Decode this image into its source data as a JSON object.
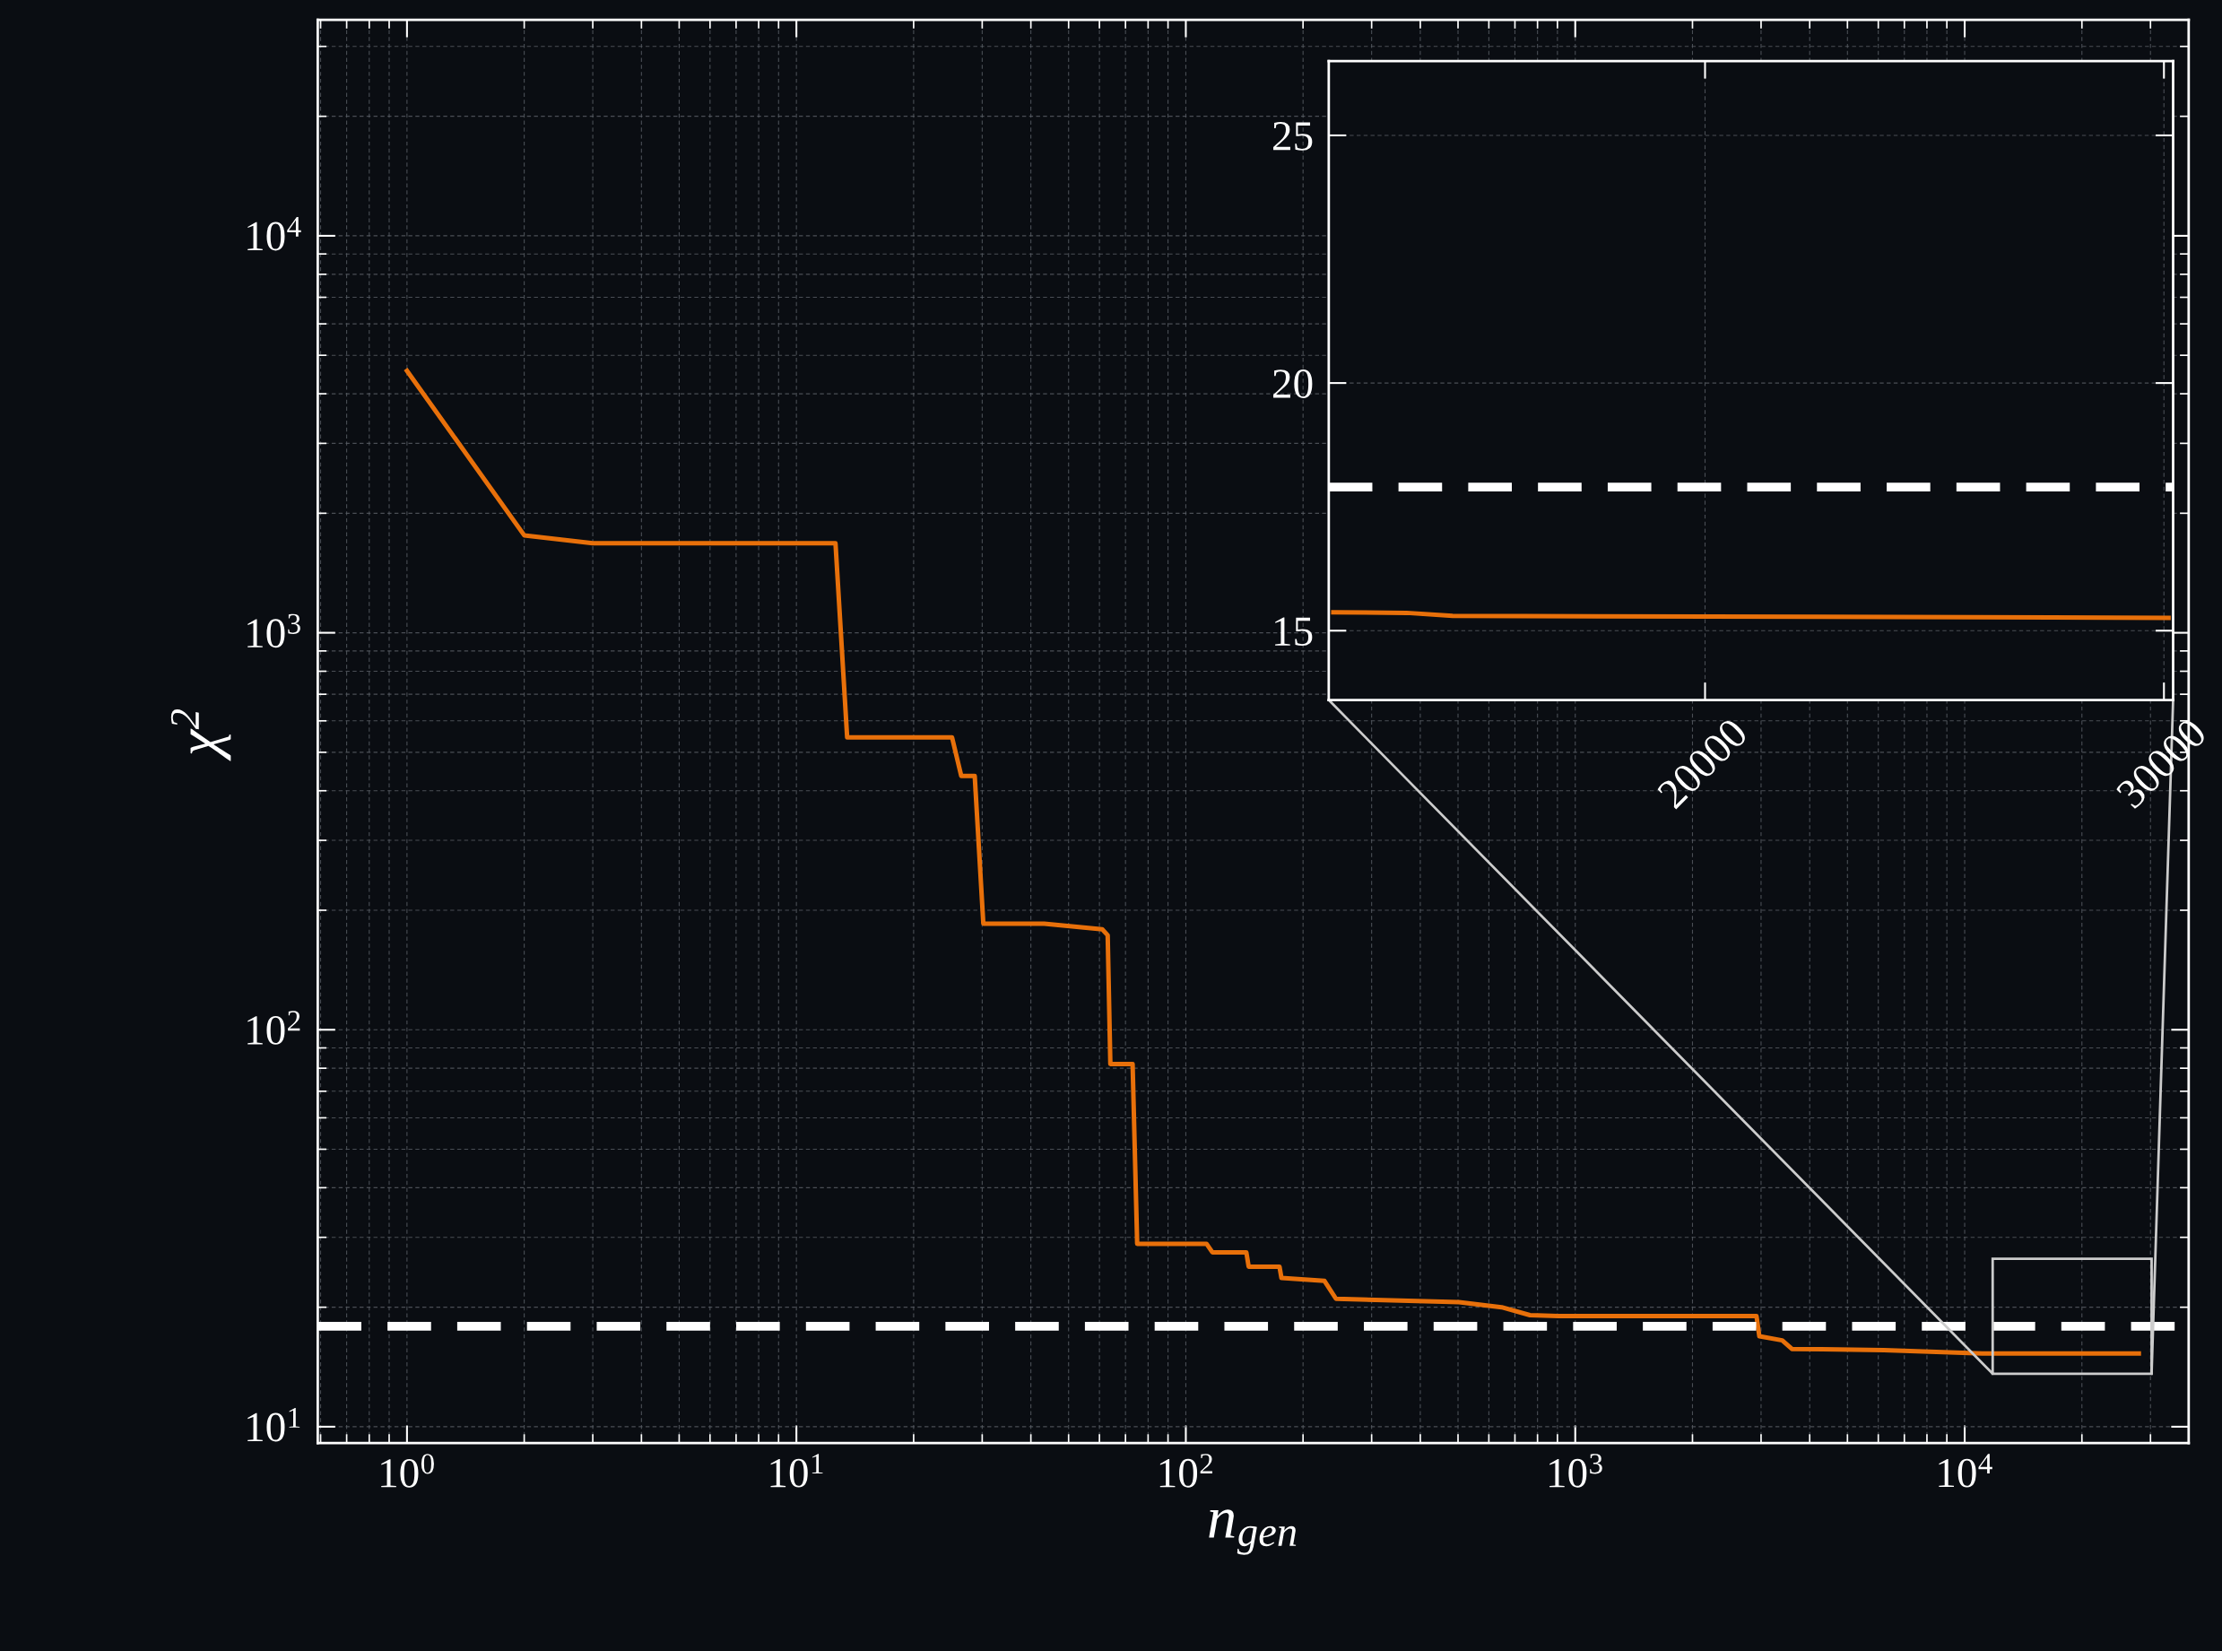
{
  "chart_data": [
    {
      "type": "line",
      "xlabel": "n$_{gen}$",
      "ylabel": "χ$^{2}$",
      "log": "xy",
      "grid": true,
      "marker": "none",
      "line_style": "solid",
      "xlim": [
        0.59,
        37600
      ],
      "ylim": [
        9.1,
        35000
      ],
      "xticks": [
        {
          "value": 1,
          "label": "10$^{0}$"
        },
        {
          "value": 10,
          "label": "10$^{1}$"
        },
        {
          "value": 100,
          "label": "10$^{2}$"
        },
        {
          "value": 1000,
          "label": "10$^{3}$"
        },
        {
          "value": 10000,
          "label": "10$^{4}$"
        }
      ],
      "yticks": [
        {
          "value": 10,
          "label": "10$^{1}$"
        },
        {
          "value": 100,
          "label": "10$^{2}$"
        },
        {
          "value": 1000,
          "label": "10$^{3}$"
        },
        {
          "value": 10000,
          "label": "10$^{4}$"
        }
      ],
      "ref_lines": [
        {
          "axis": "y",
          "value": 17.9,
          "color": "#ffffff",
          "line_style": "dashed"
        }
      ],
      "series": [
        {
          "color": "#e8700a",
          "x": [
            1,
            2,
            3,
            12.6,
            13.5,
            25.1,
            26.5,
            28.7,
            30.2,
            43.3,
            61,
            63,
            64,
            73,
            75,
            113,
            117,
            143,
            145,
            174,
            176,
            227,
            243,
            503,
            647,
            765,
            904,
            2920,
            2970,
            3400,
            3600,
            6200,
            11100,
            28000
          ],
          "values": [
            4570,
            1760,
            1680,
            1680,
            545,
            545,
            436,
            436,
            185,
            185,
            179,
            173,
            82,
            82,
            28.9,
            28.9,
            27.5,
            27.5,
            25.3,
            25.3,
            23.7,
            23.3,
            21,
            20.6,
            20,
            19.1,
            19,
            19,
            16.9,
            16.5,
            15.7,
            15.6,
            15.3,
            15.3
          ]
        }
      ]
    },
    {
      "type": "line",
      "grid": true,
      "marker": "none",
      "line_style": "solid",
      "xlim": [
        11800,
        30200
      ],
      "ylim": [
        13.6,
        26.5
      ],
      "xticks": [
        20000,
        30000
      ],
      "yticks": [
        15,
        20,
        25
      ],
      "ref_lines": [
        {
          "axis": "y",
          "value": 17.9,
          "color": "#ffffff",
          "line_style": "dashed"
        }
      ],
      "series": [
        {
          "color": "#e8700a",
          "x": [
            11900,
            13500,
            14500,
            30100
          ],
          "values": [
            15.37,
            15.36,
            15.3,
            15.26
          ]
        }
      ]
    }
  ]
}
